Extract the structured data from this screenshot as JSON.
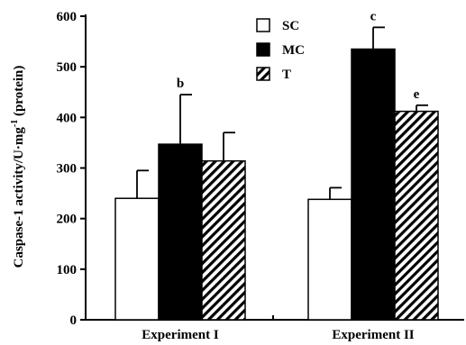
{
  "chart_data": {
    "type": "bar",
    "title": "",
    "ylabel_main": "Caspase-1 activity/U·mg",
    "ylabel_sup": "-1",
    "ylabel_end": " (protein)",
    "categories": [
      "Experiment I",
      "Experiment II"
    ],
    "ylim": [
      0,
      600
    ],
    "yticks": [
      0,
      100,
      200,
      300,
      400,
      500,
      600
    ],
    "grid": false,
    "legend_position": "top-center",
    "series": [
      {
        "name": "SC",
        "fill": "white",
        "values": [
          240,
          238
        ],
        "errors": [
          55,
          23
        ],
        "labels": [
          "",
          ""
        ]
      },
      {
        "name": "MC",
        "fill": "black",
        "values": [
          347,
          535
        ],
        "errors": [
          98,
          43
        ],
        "labels": [
          "b",
          "c"
        ]
      },
      {
        "name": "T",
        "fill": "hatch",
        "values": [
          314,
          412
        ],
        "errors": [
          56,
          12
        ],
        "labels": [
          "",
          "e"
        ]
      }
    ]
  }
}
